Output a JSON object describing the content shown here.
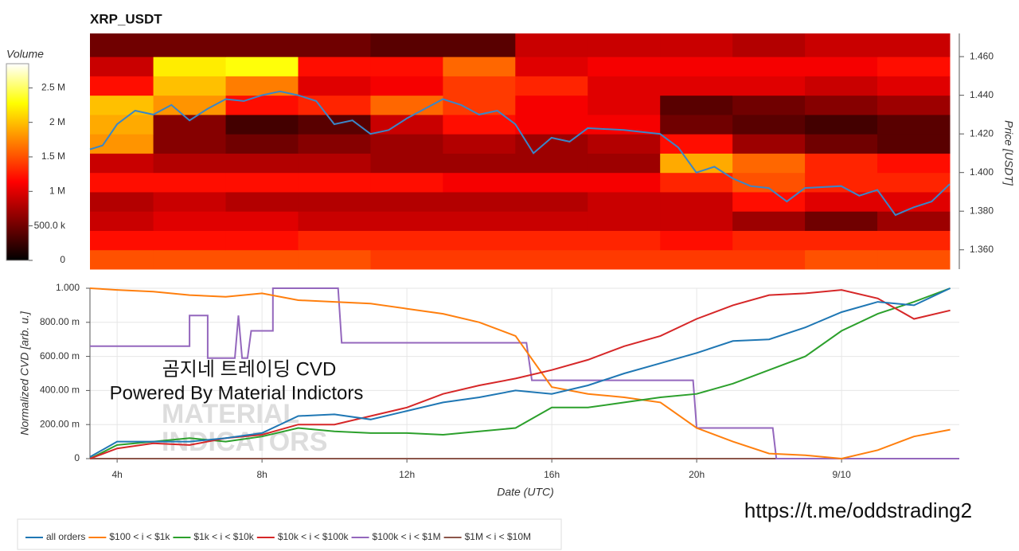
{
  "chart_data": [
    {
      "type": "heatmap",
      "title": "XRP_USDT",
      "y_label": "Price [USDT]",
      "colorbar_label": "Volume",
      "colormap": "hot",
      "xlim": [
        3.25,
        27
      ],
      "ylim": [
        1.35,
        1.472
      ],
      "x_bins": [
        3.25,
        5,
        7,
        9,
        11,
        13,
        15,
        17,
        19,
        21,
        23,
        25,
        27
      ],
      "y_bins": [
        1.35,
        1.36,
        1.37,
        1.38,
        1.39,
        1.4,
        1.41,
        1.42,
        1.43,
        1.44,
        1.45,
        1.46,
        1.472
      ],
      "values": [
        [
          1500000,
          1500000,
          1500000,
          1500000,
          1400000,
          1400000,
          1400000,
          1400000,
          1400000,
          1400000,
          1500000,
          1500000
        ],
        [
          1200000,
          1200000,
          1200000,
          1300000,
          1300000,
          1300000,
          1300000,
          1300000,
          1200000,
          1300000,
          1300000,
          1300000
        ],
        [
          900000,
          1000000,
          1000000,
          900000,
          900000,
          900000,
          900000,
          900000,
          900000,
          700000,
          500000,
          700000
        ],
        [
          800000,
          900000,
          800000,
          800000,
          800000,
          800000,
          800000,
          900000,
          900000,
          1200000,
          1000000,
          1000000
        ],
        [
          1200000,
          1200000,
          1200000,
          1200000,
          1200000,
          1100000,
          1100000,
          1100000,
          1300000,
          1500000,
          1300000,
          1300000
        ],
        [
          900000,
          800000,
          800000,
          800000,
          700000,
          700000,
          700000,
          700000,
          1900000,
          1600000,
          1300000,
          1200000
        ],
        [
          1800000,
          600000,
          500000,
          600000,
          700000,
          800000,
          700000,
          800000,
          1200000,
          700000,
          500000,
          400000
        ],
        [
          1900000,
          600000,
          300000,
          400000,
          900000,
          1200000,
          1100000,
          1100000,
          500000,
          400000,
          300000,
          400000
        ],
        [
          2000000,
          1800000,
          1200000,
          1300000,
          1600000,
          1400000,
          1100000,
          1000000,
          400000,
          500000,
          600000,
          700000
        ],
        [
          1200000,
          2000000,
          1700000,
          1000000,
          1100000,
          1400000,
          1300000,
          1000000,
          1000000,
          1000000,
          900000,
          1000000
        ],
        [
          900000,
          2200000,
          2300000,
          1200000,
          1200000,
          1600000,
          1000000,
          1100000,
          1100000,
          1100000,
          1100000,
          1200000
        ],
        [
          500000,
          500000,
          500000,
          500000,
          400000,
          400000,
          900000,
          900000,
          900000,
          800000,
          900000,
          900000
        ]
      ],
      "clim": [
        0,
        2850000
      ],
      "colorbar_ticks": [
        0,
        {
          "value": 500000,
          "label": "500.0 k"
        },
        {
          "value": 1000000,
          "label": "1 M"
        },
        {
          "value": 1500000,
          "label": "1.5 M"
        },
        {
          "value": 2000000,
          "label": "2 M"
        },
        {
          "value": 2500000,
          "label": "2.5 M"
        }
      ],
      "yticks": [
        {
          "value": 1.36,
          "label": "1.360"
        },
        {
          "value": 1.38,
          "label": "1.380"
        },
        {
          "value": 1.4,
          "label": "1.400"
        },
        {
          "value": 1.42,
          "label": "1.420"
        },
        {
          "value": 1.44,
          "label": "1.440"
        },
        {
          "value": 1.46,
          "label": "1.460"
        }
      ],
      "price_line": {
        "color": "#3a86c8",
        "x": [
          3.25,
          3.6,
          4,
          4.5,
          5,
          5.5,
          6,
          6.5,
          7,
          7.5,
          8,
          8.5,
          9,
          9.5,
          10,
          10.5,
          11,
          11.5,
          12,
          12.5,
          13,
          13.5,
          14,
          14.5,
          15,
          15.5,
          16,
          16.5,
          17,
          18,
          19,
          19.5,
          20,
          20.5,
          21,
          21.5,
          22,
          22.5,
          23,
          24,
          24.5,
          25,
          25.5,
          26,
          26.5,
          27
        ],
        "values": [
          1.412,
          1.414,
          1.425,
          1.432,
          1.43,
          1.435,
          1.427,
          1.433,
          1.438,
          1.437,
          1.44,
          1.442,
          1.44,
          1.437,
          1.425,
          1.427,
          1.42,
          1.422,
          1.428,
          1.433,
          1.438,
          1.435,
          1.43,
          1.432,
          1.425,
          1.41,
          1.418,
          1.416,
          1.423,
          1.422,
          1.42,
          1.413,
          1.4,
          1.403,
          1.397,
          1.393,
          1.392,
          1.385,
          1.392,
          1.393,
          1.388,
          1.391,
          1.378,
          1.382,
          1.385,
          1.394
        ]
      }
    },
    {
      "type": "line",
      "y_label": "Normalized CVD [arb. u.]",
      "x_label": "Date (UTC)",
      "grid": true,
      "legend": "bottom-left",
      "xlim": [
        3.25,
        27.25
      ],
      "ylim": [
        0,
        1
      ],
      "xticks": [
        {
          "value": 4,
          "label": "4h"
        },
        {
          "value": 8,
          "label": "8h"
        },
        {
          "value": 12,
          "label": "12h"
        },
        {
          "value": 16,
          "label": "16h"
        },
        {
          "value": 20,
          "label": "20h"
        },
        {
          "value": 24,
          "label": "9/10"
        }
      ],
      "yticks": [
        0,
        {
          "value": 0.2,
          "label": "200.00 m"
        },
        {
          "value": 0.4,
          "label": "400.00 m"
        },
        {
          "value": 0.6,
          "label": "600.00 m"
        },
        {
          "value": 0.8,
          "label": "800.00 m"
        },
        {
          "value": 1,
          "label": "1.000"
        }
      ],
      "x": [
        3.25,
        4,
        5,
        6,
        7,
        8,
        9,
        10,
        11,
        12,
        13,
        14,
        15,
        16,
        17,
        18,
        19,
        20,
        21,
        22,
        23,
        24,
        25,
        26,
        27
      ],
      "series": [
        {
          "name": "all orders",
          "color": "#1f77b4",
          "values": [
            0.01,
            0.1,
            0.1,
            0.1,
            0.12,
            0.15,
            0.25,
            0.26,
            0.23,
            0.28,
            0.33,
            0.36,
            0.4,
            0.38,
            0.43,
            0.5,
            0.56,
            0.62,
            0.69,
            0.7,
            0.77,
            0.86,
            0.92,
            0.9,
            1.0
          ]
        },
        {
          "name": "$100 < i < $1k",
          "color": "#ff7f0e",
          "values": [
            1.0,
            0.99,
            0.98,
            0.96,
            0.95,
            0.97,
            0.93,
            0.92,
            0.91,
            0.88,
            0.85,
            0.8,
            0.72,
            0.42,
            0.38,
            0.36,
            0.33,
            0.18,
            0.1,
            0.03,
            0.02,
            0.0,
            0.05,
            0.13,
            0.17
          ]
        },
        {
          "name": "$1k < i < $10k",
          "color": "#2ca02c",
          "values": [
            0.0,
            0.08,
            0.1,
            0.12,
            0.1,
            0.13,
            0.18,
            0.16,
            0.15,
            0.15,
            0.14,
            0.16,
            0.18,
            0.3,
            0.3,
            0.33,
            0.36,
            0.38,
            0.44,
            0.52,
            0.6,
            0.75,
            0.85,
            0.92,
            1.0
          ]
        },
        {
          "name": "$10k < i < $100k",
          "color": "#d62728",
          "values": [
            0.0,
            0.06,
            0.09,
            0.08,
            0.12,
            0.14,
            0.2,
            0.2,
            0.25,
            0.3,
            0.38,
            0.43,
            0.47,
            0.52,
            0.58,
            0.66,
            0.72,
            0.82,
            0.9,
            0.96,
            0.97,
            0.99,
            0.94,
            0.82,
            0.87
          ]
        },
        {
          "name": "$100k < i < $1M",
          "color": "#9467bd",
          "x": [
            3.25,
            6,
            6,
            6.5,
            6.5,
            7.25,
            7.35,
            7.45,
            7.6,
            7.7,
            8.3,
            8.3,
            10.1,
            10.2,
            15.3,
            15.45,
            19.9,
            20,
            22.1,
            22.2,
            27.25
          ],
          "values": [
            0.66,
            0.66,
            0.84,
            0.84,
            0.59,
            0.59,
            0.84,
            0.59,
            0.59,
            0.75,
            0.75,
            1.0,
            1.0,
            0.68,
            0.68,
            0.46,
            0.46,
            0.18,
            0.18,
            0,
            0
          ]
        },
        {
          "name": "$1M < i < $10M",
          "color": "#8c564b",
          "values": [
            0,
            0,
            0,
            0,
            0,
            0,
            0,
            0,
            0,
            0,
            0,
            0,
            0,
            0,
            0,
            0,
            0,
            0,
            0,
            0,
            0,
            0,
            0,
            0,
            0
          ]
        }
      ],
      "annotations": [
        "곰지네 트레이딩 CVD",
        "Powered By Material Indictors"
      ]
    }
  ],
  "watermark": [
    "MATERIAL",
    "INDICATORS"
  ],
  "footer_url": "https://t.me/oddstrading2"
}
